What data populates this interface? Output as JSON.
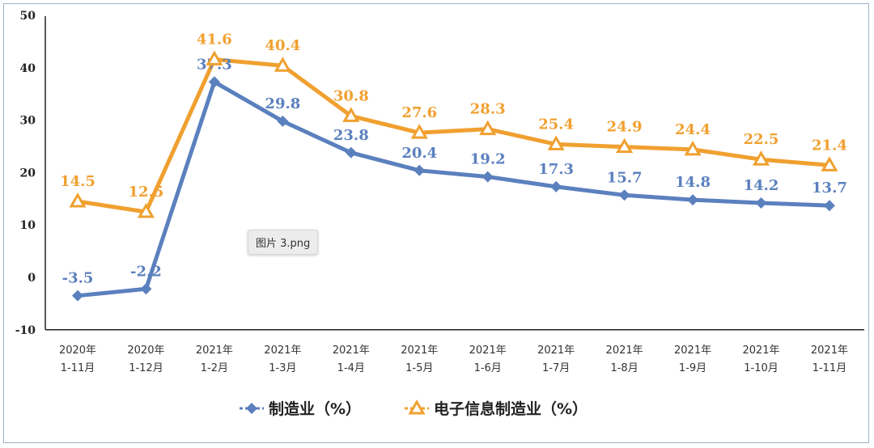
{
  "chart_data": {
    "type": "line",
    "categories": [
      [
        "2020年",
        "1-11月"
      ],
      [
        "2020年",
        "1-12月"
      ],
      [
        "2021年",
        "1-2月"
      ],
      [
        "2021年",
        "1-3月"
      ],
      [
        "2021年",
        "1-4月"
      ],
      [
        "2021年",
        "1-5月"
      ],
      [
        "2021年",
        "1-6月"
      ],
      [
        "2021年",
        "1-7月"
      ],
      [
        "2021年",
        "1-8月"
      ],
      [
        "2021年",
        "1-9月"
      ],
      [
        "2021年",
        "1-10月"
      ],
      [
        "2021年",
        "1-11月"
      ]
    ],
    "series": [
      {
        "name": "制造业（%）",
        "color": "#5b80be",
        "marker": "diamond",
        "values": [
          -3.5,
          -2.2,
          37.3,
          29.8,
          23.8,
          20.4,
          19.2,
          17.3,
          15.7,
          14.8,
          14.2,
          13.7
        ]
      },
      {
        "name": "电子信息制造业（%）",
        "color": "#f0a030",
        "marker": "triangle-open",
        "values": [
          14.5,
          12.5,
          41.6,
          40.4,
          30.8,
          27.6,
          28.3,
          25.4,
          24.9,
          24.4,
          22.5,
          21.4
        ]
      }
    ],
    "yticks": [
      "50",
      "40",
      "30",
      "20",
      "10",
      "0",
      "-10"
    ],
    "ylim": [
      -10,
      50
    ],
    "grid": false,
    "legend": "bottom"
  },
  "overlay": {
    "tooltip": "图片 3.png"
  }
}
